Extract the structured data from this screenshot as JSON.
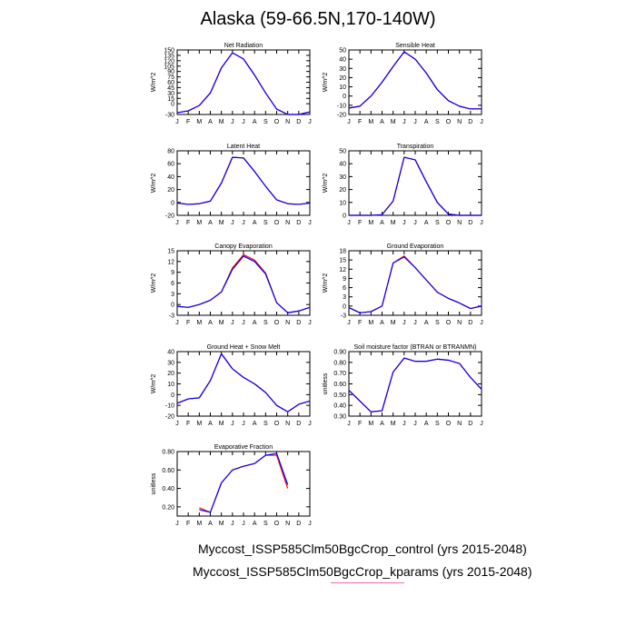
{
  "title": "Alaska (59-66.5N,170-140W)",
  "legend": [
    {
      "label": "Myccost_ISSP585Clm50BgcCrop_control (yrs 2015-2048)",
      "color": "#0000ff"
    },
    {
      "label": "Myccost_ISSP585Clm50BgcCrop_kparams (yrs 2015-2048)",
      "color": "#ff0000"
    }
  ],
  "chart_data": [
    {
      "type": "line",
      "title": "Net Radiation",
      "ylabel": "W/m^2",
      "xlabel": "",
      "categories": [
        "J",
        "F",
        "M",
        "A",
        "M",
        "J",
        "J",
        "A",
        "S",
        "O",
        "N",
        "D",
        "J"
      ],
      "ylim": [
        -30,
        150
      ],
      "yticks": [
        -30,
        0,
        15,
        30,
        45,
        60,
        75,
        90,
        105,
        120,
        135,
        150
      ],
      "series": [
        {
          "values": [
            -25,
            -20,
            -5,
            30,
            100,
            142,
            125,
            80,
            30,
            -15,
            -30,
            -30,
            -23
          ]
        },
        {
          "values": [
            -25,
            -20,
            -5,
            30,
            100,
            142,
            125,
            80,
            30,
            -15,
            -30,
            -30,
            -23
          ]
        }
      ]
    },
    {
      "type": "line",
      "title": "Sensible Heat",
      "ylabel": "W/m^2",
      "xlabel": "",
      "categories": [
        "J",
        "F",
        "M",
        "A",
        "M",
        "J",
        "J",
        "A",
        "S",
        "O",
        "N",
        "D",
        "J"
      ],
      "ylim": [
        -20,
        50
      ],
      "yticks": [
        -20,
        -10,
        0,
        10,
        20,
        30,
        40,
        50
      ],
      "series": [
        {
          "values": [
            -13,
            -11,
            0,
            15,
            32,
            48,
            40,
            25,
            7,
            -5,
            -11,
            -14,
            -14
          ]
        },
        {
          "values": [
            -13,
            -11,
            0,
            15,
            32,
            48,
            40,
            25,
            7,
            -5,
            -11,
            -14,
            -14
          ]
        }
      ]
    },
    {
      "type": "line",
      "title": "Latent Heat",
      "ylabel": "W/m^2",
      "xlabel": "",
      "categories": [
        "J",
        "F",
        "M",
        "A",
        "M",
        "J",
        "J",
        "A",
        "S",
        "O",
        "N",
        "D",
        "J"
      ],
      "ylim": [
        -20,
        80
      ],
      "yticks": [
        -20,
        0,
        20,
        40,
        60,
        80
      ],
      "series": [
        {
          "values": [
            -1,
            -3,
            -2,
            2,
            30,
            70,
            69,
            48,
            25,
            4,
            -2,
            -3,
            -1
          ]
        },
        {
          "values": [
            -1,
            -3,
            -2,
            2,
            30,
            70,
            69,
            48,
            25,
            4,
            -2,
            -3,
            -1
          ]
        }
      ]
    },
    {
      "type": "line",
      "title": "Transpiration",
      "ylabel": "W/m^2",
      "xlabel": "",
      "categories": [
        "J",
        "F",
        "M",
        "A",
        "M",
        "J",
        "J",
        "A",
        "S",
        "O",
        "N",
        "D",
        "J"
      ],
      "ylim": [
        0,
        50
      ],
      "yticks": [
        0,
        10,
        20,
        30,
        40,
        50
      ],
      "series": [
        {
          "values": [
            0,
            0,
            0,
            0.5,
            11,
            45,
            43,
            26,
            10,
            1,
            0,
            0,
            0
          ]
        },
        {
          "values": [
            0,
            0,
            0,
            0.5,
            11,
            45,
            43,
            26,
            10,
            1,
            0,
            0,
            0
          ]
        }
      ]
    },
    {
      "type": "line",
      "title": "Canopy Evaporation",
      "ylabel": "W/m^2",
      "xlabel": "",
      "categories": [
        "J",
        "F",
        "M",
        "A",
        "M",
        "J",
        "J",
        "A",
        "S",
        "O",
        "N",
        "D",
        "J"
      ],
      "ylim": [
        -3,
        15
      ],
      "yticks": [
        -3,
        0,
        3,
        6,
        9,
        12,
        15
      ],
      "series": [
        {
          "values": [
            -0.5,
            -0.8,
            0,
            1.2,
            3.5,
            9.8,
            13.5,
            12,
            8.5,
            0.5,
            -2.3,
            -1.8,
            -0.8
          ]
        },
        {
          "values": [
            -0.5,
            -0.8,
            0,
            1.2,
            3.5,
            10.2,
            13.9,
            12.4,
            8.8,
            0.5,
            -2.3,
            -1.8,
            -0.8
          ]
        }
      ]
    },
    {
      "type": "line",
      "title": "Ground Evaporation",
      "ylabel": "W/m^2",
      "xlabel": "",
      "categories": [
        "J",
        "F",
        "M",
        "A",
        "M",
        "J",
        "J",
        "A",
        "S",
        "O",
        "N",
        "D",
        "J"
      ],
      "ylim": [
        -3,
        18
      ],
      "yticks": [
        -3,
        0,
        3,
        6,
        9,
        12,
        15,
        18
      ],
      "series": [
        {
          "values": [
            -0.5,
            -2.2,
            -1.8,
            0,
            14,
            16,
            12.5,
            8.5,
            4.5,
            2.5,
            1,
            -0.8,
            0
          ]
        },
        {
          "values": [
            -0.5,
            -2.2,
            -1.8,
            0,
            14,
            16.3,
            12.5,
            8.5,
            4.5,
            2.5,
            1,
            -0.8,
            0
          ]
        }
      ]
    },
    {
      "type": "line",
      "title": "Ground Heat + Snow Melt",
      "ylabel": "W/m^2",
      "xlabel": "",
      "categories": [
        "J",
        "F",
        "M",
        "A",
        "M",
        "J",
        "J",
        "A",
        "S",
        "O",
        "N",
        "D",
        "J"
      ],
      "ylim": [
        -20,
        40
      ],
      "yticks": [
        -20,
        -10,
        0,
        10,
        20,
        30,
        40
      ],
      "series": [
        {
          "values": [
            -8,
            -4,
            -3,
            13,
            38,
            24,
            16,
            10,
            2,
            -10,
            -16,
            -9,
            -6
          ]
        },
        {
          "values": [
            -8,
            -4,
            -3,
            13,
            38,
            24,
            16,
            10,
            2,
            -10,
            -16,
            -9,
            -6
          ]
        }
      ]
    },
    {
      "type": "line",
      "title": "Soil moisture factor (BTRAN or BTRANMN)",
      "ylabel": "unitless",
      "xlabel": "",
      "categories": [
        "J",
        "F",
        "M",
        "A",
        "M",
        "J",
        "J",
        "A",
        "S",
        "O",
        "N",
        "D",
        "J"
      ],
      "ylim": [
        0.3,
        0.9
      ],
      "yticks": [
        0.3,
        0.4,
        0.5,
        0.6,
        0.7,
        0.8,
        0.9
      ],
      "ytick_labels": [
        "0.30",
        "0.40",
        "0.50",
        "0.60",
        "0.70",
        "0.80",
        "0.90"
      ],
      "series": [
        {
          "values": [
            0.54,
            0.44,
            0.34,
            0.35,
            0.71,
            0.84,
            0.81,
            0.81,
            0.83,
            0.82,
            0.79,
            0.66,
            0.55
          ]
        },
        {
          "values": [
            0.54,
            0.44,
            0.34,
            0.35,
            0.71,
            0.84,
            0.81,
            0.81,
            0.83,
            0.82,
            0.79,
            0.66,
            0.55
          ]
        }
      ]
    },
    {
      "type": "line",
      "title": "Evaporative Fraction",
      "ylabel": "unitless",
      "xlabel": "",
      "categories": [
        "J",
        "F",
        "M",
        "A",
        "M",
        "J",
        "J",
        "A",
        "S",
        "O",
        "N",
        "D",
        "J"
      ],
      "ylim": [
        0.1,
        0.8
      ],
      "yticks": [
        0.2,
        0.4,
        0.6,
        0.8
      ],
      "ytick_labels": [
        "0.20",
        "0.40",
        "0.60",
        "0.80"
      ],
      "series": [
        {
          "values": [
            null,
            null,
            0.17,
            0.14,
            0.46,
            0.6,
            0.64,
            0.67,
            0.76,
            0.78,
            0.44,
            null,
            null
          ]
        },
        {
          "values": [
            null,
            null,
            0.19,
            0.14,
            0.46,
            0.6,
            0.64,
            0.67,
            0.76,
            0.76,
            0.4,
            null,
            null
          ]
        }
      ]
    }
  ]
}
